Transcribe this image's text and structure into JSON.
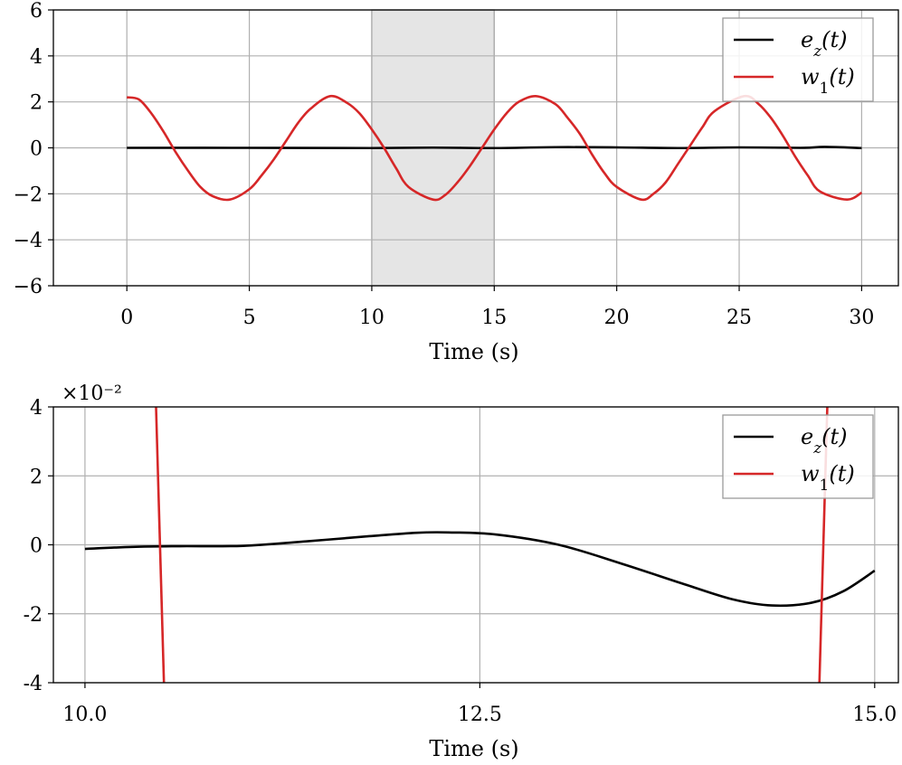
{
  "chart_data": [
    {
      "type": "line",
      "xlabel": "Time (s)",
      "ylabel": "",
      "xlim": [
        -3,
        31.5
      ],
      "ylim": [
        -6,
        6
      ],
      "xticks": [
        0,
        5,
        10,
        15,
        20,
        25,
        30
      ],
      "xtick_labels": [
        "0",
        "5",
        "10",
        "15",
        "20",
        "25",
        "30"
      ],
      "yticks": [
        -6,
        -4,
        -2,
        0,
        2,
        4,
        6
      ],
      "ytick_labels": [
        "−6",
        "−4",
        "−2",
        "0",
        "2",
        "4",
        "6"
      ],
      "grid": true,
      "legend_position": "top-right",
      "highlight_band": [
        10,
        15
      ],
      "series": [
        {
          "name": "e_z(t)",
          "color": "#000000",
          "x": [
            0,
            5,
            10,
            12.5,
            15,
            17.5,
            20,
            22.5,
            25,
            27.5,
            28.5,
            30
          ],
          "y": [
            0,
            0,
            -0.01,
            0.01,
            -0.01,
            0.03,
            0.02,
            -0.01,
            0.02,
            0.0,
            0.04,
            -0.01
          ]
        },
        {
          "name": "w_1(t)",
          "color": "#d62728",
          "x": [
            0.0,
            0.5,
            1.0,
            1.5,
            2.0,
            2.5,
            3.0,
            3.5,
            4.2,
            5.0,
            5.5,
            6.0,
            6.5,
            7.0,
            7.5,
            8.3,
            9.0,
            9.5,
            10.0,
            10.5,
            11.0,
            11.5,
            12.5,
            13.0,
            13.5,
            14.0,
            14.5,
            15.0,
            15.5,
            16.0,
            16.7,
            17.5,
            18.0,
            18.5,
            19.0,
            19.5,
            20.0,
            21.0,
            21.5,
            22.0,
            22.5,
            23.0,
            23.5,
            24.0,
            25.2,
            25.8,
            26.3,
            26.8,
            27.3,
            27.8,
            28.3,
            29.4,
            30.0
          ],
          "y": [
            2.2,
            2.1,
            1.5,
            0.7,
            -0.2,
            -1.0,
            -1.7,
            -2.1,
            -2.25,
            -1.8,
            -1.2,
            -0.5,
            0.3,
            1.1,
            1.7,
            2.25,
            1.95,
            1.5,
            0.8,
            0.0,
            -0.9,
            -1.7,
            -2.25,
            -2.05,
            -1.5,
            -0.8,
            0.0,
            0.8,
            1.5,
            2.0,
            2.25,
            1.9,
            1.3,
            0.6,
            -0.3,
            -1.1,
            -1.7,
            -2.25,
            -2.0,
            -1.5,
            -0.7,
            0.1,
            0.9,
            1.6,
            2.25,
            1.9,
            1.3,
            0.5,
            -0.4,
            -1.2,
            -1.9,
            -2.25,
            -1.95
          ]
        }
      ]
    },
    {
      "type": "line",
      "xlabel": "Time (s)",
      "ylabel": "",
      "multiplier_label": "×10⁻²",
      "xlim": [
        9.8,
        15.15
      ],
      "ylim": [
        -4,
        4
      ],
      "xticks": [
        10.0,
        12.5,
        15.0
      ],
      "xtick_labels": [
        "10.0",
        "12.5",
        "15.0"
      ],
      "yticks": [
        -4,
        -2,
        0,
        2,
        4
      ],
      "ytick_labels": [
        "-4",
        "-2",
        "0",
        "2",
        "4"
      ],
      "grid": true,
      "legend_position": "top-right",
      "series": [
        {
          "name": "e_z(t)",
          "color": "#000000",
          "x": [
            10.0,
            10.3,
            10.6,
            11.0,
            11.4,
            11.8,
            12.1,
            12.3,
            12.6,
            13.0,
            13.4,
            13.8,
            14.1,
            14.35,
            14.6,
            14.8,
            15.0
          ],
          "y": [
            -0.12,
            -0.06,
            -0.04,
            -0.03,
            0.1,
            0.25,
            0.35,
            0.36,
            0.3,
            0.0,
            -0.55,
            -1.15,
            -1.58,
            -1.76,
            -1.68,
            -1.35,
            -0.75
          ]
        },
        {
          "name": "w_1(t)",
          "color": "#d62728",
          "x": [
            10.45,
            10.5,
            14.65,
            14.7
          ],
          "y": [
            4.0,
            -4.0,
            -4.0,
            4.0
          ],
          "segments": [
            [
              0,
              1
            ],
            [
              2,
              3
            ]
          ]
        }
      ]
    }
  ]
}
